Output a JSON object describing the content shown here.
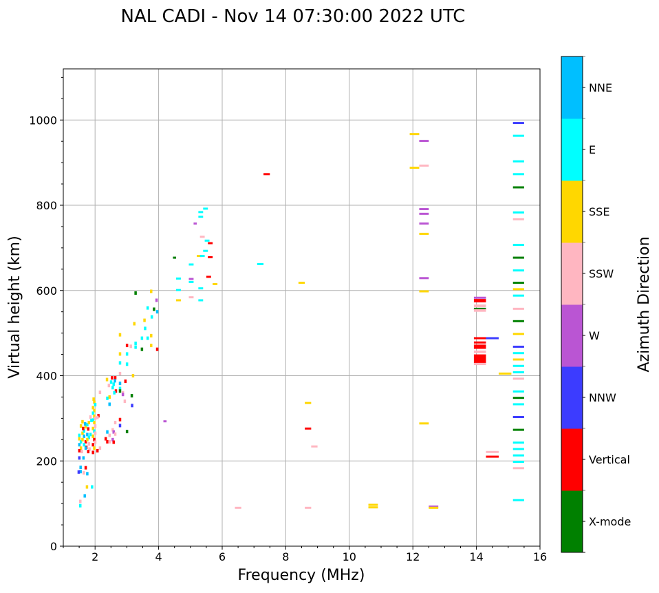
{
  "chart_data": {
    "type": "scatter",
    "title": "NAL CADI - Nov 14 07:30:00 2022 UTC",
    "xlabel": "Frequency (MHz)",
    "ylabel": "Virtual height (km)",
    "xlim": [
      1,
      16
    ],
    "ylim": [
      0,
      1120
    ],
    "xticks": [
      2,
      4,
      6,
      8,
      10,
      12,
      14,
      16
    ],
    "yticks": [
      0,
      200,
      400,
      600,
      800,
      1000
    ],
    "grid": true,
    "colorbar": {
      "label": "Azimuth Direction",
      "categories": [
        "X-mode",
        "Vertical",
        "NNW",
        "W",
        "SSW",
        "SSE",
        "E",
        "NNE"
      ],
      "colors": [
        "#008000",
        "#ff0000",
        "#3c3cff",
        "#ba55d3",
        "#ffb6c1",
        "#ffd700",
        "#00ffff",
        "#00bfff"
      ]
    },
    "segments_desc": "[freq_start_MHz, freq_end_MHz, height_km, category_index]",
    "segments": [
      [
        15.15,
        15.5,
        993,
        2
      ],
      [
        15.15,
        15.5,
        963,
        6
      ],
      [
        15.15,
        15.5,
        903,
        6
      ],
      [
        15.15,
        15.5,
        873,
        6
      ],
      [
        15.15,
        15.5,
        842,
        0
      ],
      [
        15.15,
        15.5,
        783,
        6
      ],
      [
        15.15,
        15.5,
        767,
        4
      ],
      [
        15.15,
        15.5,
        707,
        6
      ],
      [
        15.15,
        15.5,
        677,
        0
      ],
      [
        15.15,
        15.5,
        647,
        6
      ],
      [
        15.15,
        15.5,
        618,
        0
      ],
      [
        15.15,
        15.5,
        603,
        5
      ],
      [
        15.15,
        15.5,
        588,
        6
      ],
      [
        15.15,
        15.5,
        557,
        4
      ],
      [
        15.15,
        15.5,
        528,
        0
      ],
      [
        15.15,
        15.5,
        498,
        5
      ],
      [
        15.15,
        15.5,
        468,
        2
      ],
      [
        15.15,
        15.5,
        453,
        6
      ],
      [
        15.15,
        15.5,
        438,
        5
      ],
      [
        15.15,
        15.5,
        423,
        6
      ],
      [
        15.15,
        15.5,
        408,
        6
      ],
      [
        15.15,
        15.5,
        393,
        4
      ],
      [
        15.15,
        15.5,
        363,
        6
      ],
      [
        15.15,
        15.5,
        348,
        0
      ],
      [
        15.15,
        15.5,
        333,
        6
      ],
      [
        15.15,
        15.5,
        303,
        2
      ],
      [
        15.15,
        15.5,
        273,
        0
      ],
      [
        15.15,
        15.5,
        243,
        6
      ],
      [
        15.15,
        15.5,
        228,
        6
      ],
      [
        15.15,
        15.5,
        213,
        6
      ],
      [
        15.15,
        15.5,
        198,
        6
      ],
      [
        15.15,
        15.5,
        183,
        4
      ],
      [
        15.15,
        15.5,
        108,
        6
      ],
      [
        13.92,
        14.3,
        583,
        3
      ],
      [
        13.92,
        14.3,
        557,
        0
      ],
      [
        13.92,
        14.3,
        488,
        1
      ],
      [
        14.3,
        14.7,
        488,
        2
      ],
      [
        13.92,
        14.3,
        478,
        1
      ],
      [
        14.3,
        14.7,
        221,
        4
      ],
      [
        14.3,
        14.7,
        210,
        1
      ],
      [
        14.7,
        15.1,
        405,
        5
      ],
      [
        11.9,
        12.2,
        967,
        5
      ],
      [
        11.9,
        12.2,
        888,
        5
      ],
      [
        12.2,
        12.5,
        951,
        3
      ],
      [
        12.2,
        12.5,
        893,
        4
      ],
      [
        12.2,
        12.5,
        791,
        3
      ],
      [
        12.2,
        12.5,
        780,
        3
      ],
      [
        12.2,
        12.5,
        757,
        3
      ],
      [
        12.2,
        12.5,
        733,
        5
      ],
      [
        12.2,
        12.5,
        629,
        3
      ],
      [
        12.2,
        12.5,
        598,
        5
      ],
      [
        12.2,
        12.5,
        288,
        5
      ],
      [
        12.5,
        12.8,
        93,
        3
      ],
      [
        12.5,
        12.8,
        90,
        5
      ],
      [
        10.6,
        10.9,
        97,
        5
      ],
      [
        10.6,
        10.9,
        91,
        5
      ],
      [
        8.4,
        8.6,
        618,
        5
      ],
      [
        8.6,
        8.8,
        336,
        5
      ],
      [
        8.6,
        8.8,
        276,
        1
      ],
      [
        8.6,
        8.8,
        90,
        4
      ],
      [
        8.8,
        9.0,
        234,
        4
      ],
      [
        7.3,
        7.5,
        873,
        1
      ],
      [
        7.1,
        7.3,
        662,
        6
      ],
      [
        6.4,
        6.6,
        90,
        4
      ],
      [
        5.4,
        5.55,
        792,
        6
      ],
      [
        5.25,
        5.4,
        784,
        6
      ],
      [
        5.25,
        5.4,
        773,
        6
      ],
      [
        5.1,
        5.2,
        757,
        3
      ],
      [
        5.3,
        5.45,
        726,
        4
      ],
      [
        5.45,
        5.6,
        717,
        6
      ],
      [
        5.55,
        5.7,
        711,
        1
      ],
      [
        5.4,
        5.55,
        693,
        6
      ],
      [
        5.2,
        5.35,
        681,
        5
      ],
      [
        5.3,
        5.45,
        681,
        6
      ],
      [
        5.55,
        5.7,
        678,
        1
      ],
      [
        4.95,
        5.1,
        661,
        6
      ],
      [
        5.7,
        5.85,
        615,
        5
      ],
      [
        5.5,
        5.65,
        632,
        1
      ],
      [
        4.95,
        5.1,
        627,
        3
      ],
      [
        4.95,
        5.1,
        620,
        6
      ],
      [
        5.25,
        5.4,
        605,
        6
      ],
      [
        4.55,
        4.7,
        628,
        6
      ],
      [
        4.55,
        4.7,
        601,
        6
      ],
      [
        4.95,
        5.1,
        584,
        4
      ],
      [
        5.25,
        5.4,
        577,
        6
      ],
      [
        4.55,
        4.7,
        577,
        5
      ],
      [
        4.45,
        4.55,
        677,
        0
      ],
      [
        4.15,
        4.25,
        293,
        3
      ]
    ],
    "blocks_desc": "[freq_start_MHz, freq_end_MHz, height_low_km, height_high_km, category_index]",
    "blocks": [
      [
        13.92,
        14.3,
        572,
        580,
        1
      ],
      [
        13.92,
        14.3,
        561,
        567,
        4
      ],
      [
        13.92,
        14.3,
        550,
        556,
        4
      ],
      [
        13.92,
        14.3,
        463,
        473,
        1
      ],
      [
        13.92,
        14.3,
        453,
        459,
        4
      ],
      [
        13.92,
        14.3,
        430,
        450,
        1
      ],
      [
        13.92,
        14.3,
        425,
        430,
        4
      ]
    ],
    "cells_desc": "[freq_MHz, height_km, category_index]",
    "cells": [
      [
        3.27,
        594,
        0
      ],
      [
        3.76,
        598,
        5
      ],
      [
        3.93,
        577,
        3
      ],
      [
        3.65,
        559,
        6
      ],
      [
        3.85,
        556,
        0
      ],
      [
        3.95,
        550,
        7
      ],
      [
        3.78,
        538,
        6
      ],
      [
        3.55,
        530,
        5
      ],
      [
        3.23,
        522,
        5
      ],
      [
        3.57,
        511,
        6
      ],
      [
        2.78,
        496,
        5
      ],
      [
        3.76,
        494,
        5
      ],
      [
        3.47,
        488,
        6
      ],
      [
        3.65,
        488,
        6
      ],
      [
        3.27,
        476,
        6
      ],
      [
        3.0,
        471,
        1
      ],
      [
        3.12,
        469,
        4
      ],
      [
        3.27,
        467,
        6
      ],
      [
        3.47,
        462,
        0
      ],
      [
        3.76,
        471,
        5
      ],
      [
        3.95,
        462,
        1
      ],
      [
        2.78,
        451,
        5
      ],
      [
        3.0,
        451,
        6
      ],
      [
        2.78,
        430,
        6
      ],
      [
        3.0,
        427,
        6
      ],
      [
        2.78,
        405,
        4
      ],
      [
        3.19,
        400,
        5
      ],
      [
        2.37,
        391,
        5
      ],
      [
        2.53,
        395,
        1
      ],
      [
        2.63,
        395,
        1
      ],
      [
        2.5,
        385,
        6
      ],
      [
        2.58,
        380,
        6
      ],
      [
        2.55,
        372,
        6
      ],
      [
        2.62,
        388,
        7
      ],
      [
        2.43,
        377,
        4
      ],
      [
        2.95,
        387,
        1
      ],
      [
        2.78,
        382,
        7
      ],
      [
        2.78,
        370,
        6
      ],
      [
        2.78,
        364,
        0
      ],
      [
        2.65,
        364,
        1
      ],
      [
        2.6,
        360,
        6
      ],
      [
        2.15,
        361,
        4
      ],
      [
        2.45,
        350,
        5
      ],
      [
        2.38,
        347,
        6
      ],
      [
        2.87,
        360,
        4
      ],
      [
        3.15,
        353,
        0
      ],
      [
        2.93,
        340,
        4
      ],
      [
        3.16,
        330,
        2
      ],
      [
        2.45,
        333,
        7
      ],
      [
        2.87,
        356,
        3
      ],
      [
        2.1,
        306,
        1
      ],
      [
        2.07,
        302,
        4
      ],
      [
        2.78,
        297,
        1
      ],
      [
        2.78,
        283,
        2
      ],
      [
        3.0,
        269,
        0
      ],
      [
        2.63,
        290,
        4
      ],
      [
        2.55,
        273,
        4
      ],
      [
        2.58,
        268,
        3
      ],
      [
        2.38,
        268,
        7
      ],
      [
        2.45,
        260,
        4
      ],
      [
        2.63,
        263,
        4
      ],
      [
        2.33,
        252,
        1
      ],
      [
        2.55,
        250,
        3
      ],
      [
        2.58,
        244,
        1
      ],
      [
        2.38,
        245,
        1
      ],
      [
        2.45,
        245,
        4
      ],
      [
        2.15,
        230,
        4
      ],
      [
        2.07,
        224,
        1
      ],
      [
        1.95,
        345,
        5
      ],
      [
        1.97,
        338,
        5
      ],
      [
        2.0,
        332,
        6
      ],
      [
        1.93,
        325,
        5
      ],
      [
        1.97,
        318,
        5
      ],
      [
        1.93,
        312,
        6
      ],
      [
        1.97,
        305,
        5
      ],
      [
        2.0,
        300,
        4
      ],
      [
        1.93,
        296,
        6
      ],
      [
        1.97,
        290,
        5
      ],
      [
        2.0,
        282,
        4
      ],
      [
        1.93,
        276,
        5
      ],
      [
        1.97,
        270,
        6
      ],
      [
        2.0,
        265,
        4
      ],
      [
        1.93,
        258,
        5
      ],
      [
        1.97,
        250,
        1
      ],
      [
        2.0,
        244,
        4
      ],
      [
        1.93,
        238,
        1
      ],
      [
        1.97,
        230,
        5
      ],
      [
        1.93,
        220,
        1
      ],
      [
        1.5,
        260,
        6
      ],
      [
        1.5,
        252,
        5
      ],
      [
        1.55,
        245,
        6
      ],
      [
        1.5,
        238,
        7
      ],
      [
        1.55,
        230,
        5
      ],
      [
        1.5,
        224,
        1
      ],
      [
        1.58,
        222,
        4
      ],
      [
        1.6,
        265,
        5
      ],
      [
        1.65,
        270,
        6
      ],
      [
        1.65,
        258,
        7
      ],
      [
        1.6,
        250,
        5
      ],
      [
        1.7,
        245,
        1
      ],
      [
        1.65,
        238,
        6
      ],
      [
        1.7,
        280,
        5
      ],
      [
        1.75,
        285,
        6
      ],
      [
        1.78,
        275,
        1
      ],
      [
        1.75,
        262,
        7
      ],
      [
        1.8,
        255,
        6
      ],
      [
        1.75,
        250,
        5
      ],
      [
        1.8,
        240,
        4
      ],
      [
        1.72,
        232,
        1
      ],
      [
        1.82,
        228,
        4
      ],
      [
        1.85,
        262,
        6
      ],
      [
        1.8,
        290,
        5
      ],
      [
        1.88,
        295,
        6
      ],
      [
        1.85,
        303,
        4
      ],
      [
        1.6,
        292,
        5
      ],
      [
        1.55,
        282,
        5
      ],
      [
        1.62,
        276,
        1
      ],
      [
        1.68,
        287,
        7
      ],
      [
        1.7,
        230,
        7
      ],
      [
        1.78,
        222,
        1
      ],
      [
        1.5,
        207,
        2
      ],
      [
        1.63,
        207,
        7
      ],
      [
        1.54,
        185,
        7
      ],
      [
        1.54,
        175,
        7
      ],
      [
        1.48,
        174,
        2
      ],
      [
        1.64,
        172,
        4
      ],
      [
        1.75,
        170,
        7
      ],
      [
        1.7,
        184,
        1
      ],
      [
        1.74,
        139,
        5
      ],
      [
        1.9,
        139,
        6
      ],
      [
        1.67,
        118,
        7
      ],
      [
        1.53,
        105,
        4
      ],
      [
        1.53,
        95,
        6
      ]
    ]
  }
}
